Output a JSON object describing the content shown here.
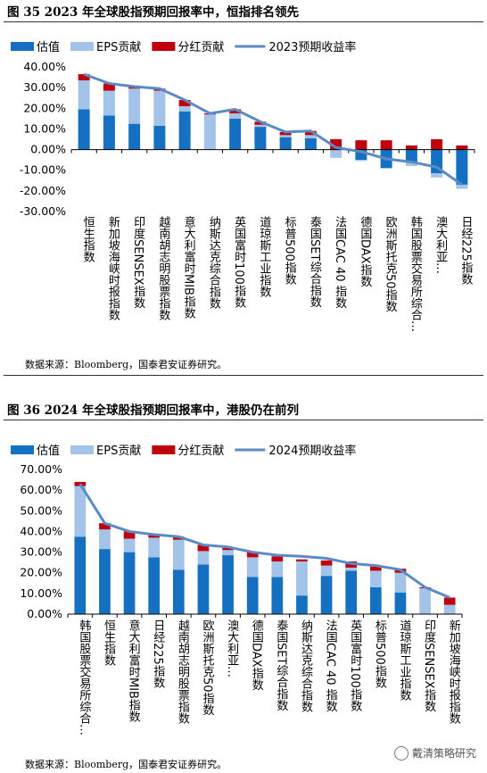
{
  "figure1": {
    "title": "图 35 2023 年全球股指预期回报率中，恒指排名领先",
    "source": "数据来源：Bloomberg，国泰君安证券研究。",
    "chart_data": {
      "type": "bar",
      "stacked": true,
      "categories": [
        "恒生指数",
        "新加坡海峡时报指数",
        "印度SENSEX指数",
        "越南胡志明股票指数",
        "意大利富时MIB指数",
        "纳斯达克综合指数",
        "英国富时100指数",
        "道琼斯工业指数",
        "标普500指数",
        "泰国SET综合指数",
        "法国CAC 40 指数",
        "德国DAX指数",
        "欧洲斯托克50指数",
        "韩国股票交易所综合…",
        "澳大利亚…",
        "日经225指数"
      ],
      "series": [
        {
          "name": "估值",
          "type": "bar",
          "color": "#1570c2",
          "values": [
            19.5,
            16.5,
            12.5,
            11.5,
            18.5,
            0,
            15,
            11,
            6,
            5.5,
            0,
            -5,
            -9,
            -6.5,
            -11.5,
            -17
          ]
        },
        {
          "name": "EPS贡献",
          "type": "bar",
          "color": "#a3c4e8",
          "values": [
            14,
            12,
            17,
            17,
            2.5,
            17,
            2.5,
            1,
            1,
            1.5,
            -4,
            -0.5,
            0,
            -1.5,
            -2,
            -2
          ]
        },
        {
          "name": "分红贡献",
          "type": "bar",
          "color": "#c0000f",
          "values": [
            3,
            3.5,
            1,
            1,
            3,
            0.5,
            2,
            1.5,
            1.5,
            2,
            5,
            4.5,
            4.5,
            2,
            5,
            2
          ]
        },
        {
          "name": "2023预期收益率",
          "type": "line",
          "color": "#5b8bc5",
          "values": [
            36.5,
            32,
            30.5,
            29.5,
            24,
            17.5,
            19.5,
            13.5,
            8.5,
            9,
            1,
            -1,
            -4.5,
            -6,
            -8.5,
            -17
          ]
        }
      ],
      "ylim": [
        -30,
        40
      ],
      "yticks": [
        -30,
        -20,
        -10,
        0,
        10,
        20,
        30,
        40
      ],
      "ytick_labels": [
        "-30.00%",
        "-20.00%",
        "-10.00%",
        "0.00%",
        "10.00%",
        "20.00%",
        "30.00%",
        "40.00%"
      ],
      "legend_position": "top"
    }
  },
  "figure2": {
    "title": "图 36 2024 年全球股指预期回报率中，港股仍在前列",
    "source": "数据来源：Bloomberg，国泰君安证券研究。",
    "chart_data": {
      "type": "bar",
      "stacked": true,
      "categories": [
        "韩国股票交易所综合…",
        "恒生指数",
        "意大利富时MIB指数",
        "日经225指数",
        "越南胡志明股票指数",
        "欧洲斯托克50指数",
        "澳大利亚…",
        "德国DAX指数",
        "泰国SET综合指数",
        "纳斯达克综合指数",
        "法国CAC 40 指数",
        "英国富时100指数",
        "标普500指数",
        "道琼斯工业指数",
        "印度SENSEX指数",
        "新加坡海峡时报指数"
      ],
      "series": [
        {
          "name": "估值",
          "type": "bar",
          "color": "#1570c2",
          "values": [
            37.5,
            31.5,
            30,
            27.5,
            21.5,
            24,
            28.5,
            18,
            18,
            9,
            18.5,
            21,
            13,
            10.5,
            0,
            0
          ]
        },
        {
          "name": "EPS贡献",
          "type": "bar",
          "color": "#a3c4e8",
          "values": [
            24.5,
            9.5,
            6.5,
            9.5,
            14.5,
            6.5,
            2.5,
            9.5,
            7.5,
            16.5,
            5,
            1.5,
            8,
            9.5,
            12.5,
            4.5
          ]
        },
        {
          "name": "分红贡献",
          "type": "bar",
          "color": "#c0000f",
          "values": [
            2,
            3,
            3.5,
            1.5,
            1.5,
            3,
            1,
            2.5,
            2.5,
            1,
            2.5,
            3,
            2,
            2,
            0.5,
            3.5
          ]
        },
        {
          "name": "2024预期收益率",
          "type": "line",
          "color": "#5b8bc5",
          "values": [
            63,
            44,
            40,
            38.5,
            37.5,
            33.5,
            32.5,
            30,
            28.5,
            28,
            27,
            24.5,
            23.5,
            21.5,
            13,
            8
          ]
        }
      ],
      "ylim": [
        0,
        70
      ],
      "yticks": [
        0,
        10,
        20,
        30,
        40,
        50,
        60,
        70
      ],
      "ytick_labels": [
        "0.00%",
        "10.00%",
        "20.00%",
        "30.00%",
        "40.00%",
        "50.00%",
        "60.00%",
        "70.00%"
      ],
      "legend_position": "top"
    }
  },
  "watermark": {
    "text": "戴清策略研究"
  }
}
